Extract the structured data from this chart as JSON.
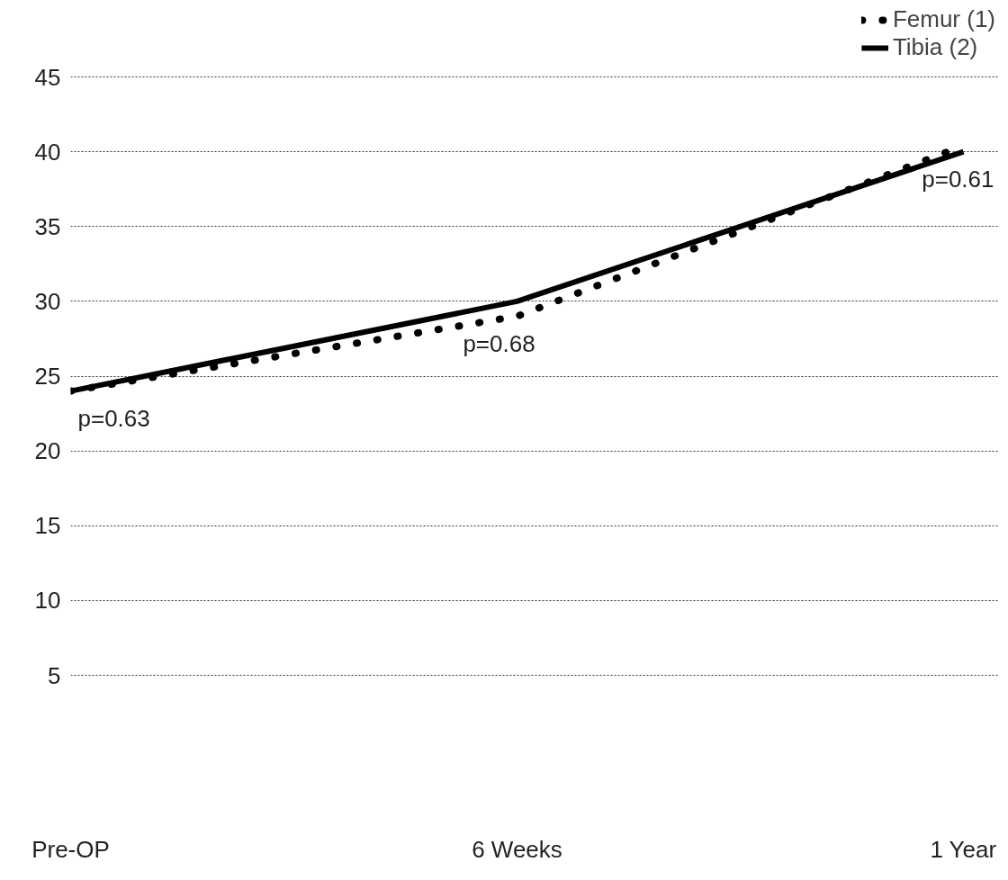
{
  "chart_data": {
    "type": "line",
    "categories": [
      "Pre-OP",
      "6 Weeks",
      "1 Year"
    ],
    "series": [
      {
        "name": "Femur (1)",
        "color": "#000000",
        "values": [
          24.0,
          29.0,
          40.4
        ],
        "line_style": "dotted"
      },
      {
        "name": "Tibia (2)",
        "color": "#000000",
        "values": [
          24.0,
          30.0,
          40.0
        ],
        "line_style": "solid"
      }
    ],
    "ylim": [
      5,
      45
    ],
    "yticks": [
      5,
      10,
      15,
      20,
      25,
      30,
      35,
      40,
      45
    ],
    "grid": "y",
    "legend": "top right",
    "annotations": [
      {
        "text": "p=0.63",
        "x": "Pre-OP",
        "y": 24.0
      },
      {
        "text": "p=0.68",
        "x": "6 Weeks",
        "y": 29.0
      },
      {
        "text": "p=0.61",
        "x": "1 Year",
        "y": 40.0
      }
    ]
  }
}
